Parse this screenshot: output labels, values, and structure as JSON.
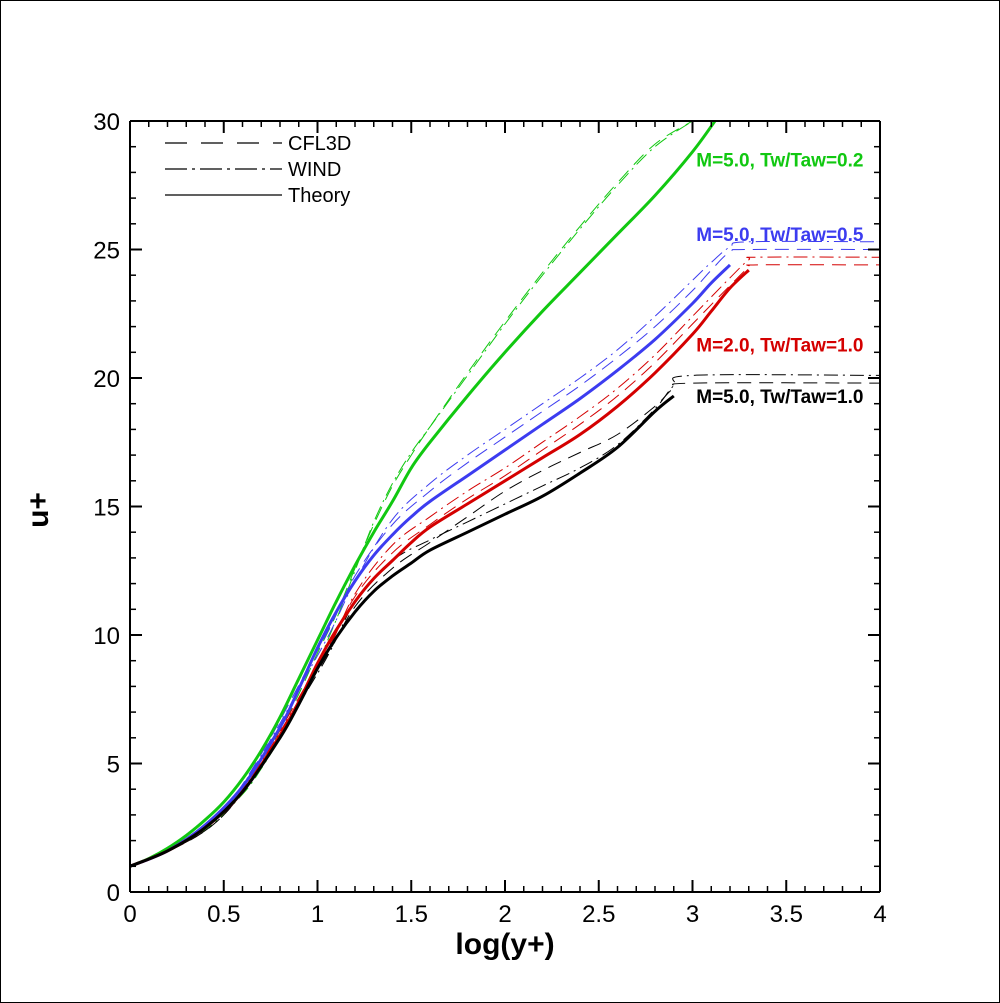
{
  "chart_data": {
    "type": "line",
    "title": "",
    "xlabel": "log(y+)",
    "ylabel": "u+",
    "xlim": [
      0,
      4
    ],
    "ylim": [
      0,
      30
    ],
    "xticks": [
      "0",
      "0.5",
      "1",
      "1.5",
      "2",
      "2.5",
      "3",
      "3.5",
      "4"
    ],
    "yticks": [
      "0",
      "5",
      "10",
      "15",
      "20",
      "25",
      "30"
    ],
    "grid": false,
    "legend": {
      "placement": "top-left",
      "entries": [
        {
          "label": "CFL3D",
          "style": "dashed"
        },
        {
          "label": "WIND",
          "style": "dashdot"
        },
        {
          "label": "Theory",
          "style": "solid"
        }
      ]
    },
    "annotations": [
      {
        "text": "M=5.0, Tw/Taw=0.2",
        "color": "#11c811",
        "x": 3.02,
        "y": 28.5
      },
      {
        "text": "M=5.0, Tw/Taw=0.5",
        "color": "#3c3cf0",
        "x": 3.02,
        "y": 25.6
      },
      {
        "text": "M=2.0, Tw/Taw=1.0",
        "color": "#d40000",
        "x": 3.02,
        "y": 21.3
      },
      {
        "text": "M=5.0, Tw/Taw=1.0",
        "color": "#000000",
        "x": 3.02,
        "y": 19.3
      }
    ],
    "series": [
      {
        "case": "M=5.0, Tw/Taw=0.2",
        "color": "#11c811",
        "style": "solid",
        "width": 3,
        "x": [
          0,
          0.1,
          0.2,
          0.3,
          0.4,
          0.5,
          0.6,
          0.7,
          0.8,
          0.9,
          1.0,
          1.1,
          1.2,
          1.3,
          1.4,
          1.5,
          1.6,
          1.8,
          2.0,
          2.2,
          2.4,
          2.6,
          2.8,
          3.0,
          3.12
        ],
        "y": [
          1.0,
          1.3,
          1.7,
          2.2,
          2.8,
          3.5,
          4.4,
          5.5,
          6.8,
          8.3,
          9.8,
          11.3,
          12.7,
          14.0,
          15.2,
          16.5,
          17.5,
          19.3,
          21.0,
          22.6,
          24.1,
          25.6,
          27.1,
          28.8,
          30.0
        ]
      },
      {
        "case": "M=5.0, Tw/Taw=0.2",
        "color": "#11c811",
        "style": "dashed",
        "width": 1,
        "x": [
          0,
          0.2,
          0.4,
          0.6,
          0.7,
          0.8,
          0.9,
          1.0,
          1.1,
          1.2,
          1.3,
          1.4,
          1.5,
          1.6,
          1.8,
          2.0,
          2.2,
          2.4,
          2.6,
          2.8,
          3.0
        ],
        "y": [
          1.0,
          1.6,
          2.5,
          4.0,
          5.0,
          6.3,
          7.7,
          9.3,
          10.8,
          12.6,
          14.3,
          15.8,
          17.0,
          18.1,
          20.2,
          22.2,
          24.1,
          25.9,
          27.6,
          29.1,
          30.0
        ]
      },
      {
        "case": "M=5.0, Tw/Taw=0.2",
        "color": "#11c811",
        "style": "dashdot",
        "width": 1,
        "x": [
          0,
          0.2,
          0.4,
          0.6,
          0.7,
          0.8,
          0.9,
          1.0,
          1.1,
          1.2,
          1.3,
          1.4,
          1.5,
          1.6,
          1.8,
          2.0,
          2.2,
          2.4,
          2.6,
          2.8,
          3.0
        ],
        "y": [
          1.0,
          1.6,
          2.4,
          3.8,
          4.8,
          6.0,
          7.4,
          8.9,
          10.6,
          12.5,
          14.4,
          15.9,
          17.1,
          18.1,
          20.1,
          22.1,
          24.0,
          25.8,
          27.5,
          29.0,
          30.0
        ]
      },
      {
        "case": "M=5.0, Tw/Taw=0.5",
        "color": "#3c3cf0",
        "style": "solid",
        "width": 3,
        "x": [
          0,
          0.2,
          0.4,
          0.6,
          0.8,
          0.9,
          1.0,
          1.1,
          1.2,
          1.3,
          1.4,
          1.5,
          1.6,
          1.8,
          2.0,
          2.2,
          2.4,
          2.6,
          2.8,
          3.0,
          3.1,
          3.2
        ],
        "y": [
          1.0,
          1.6,
          2.6,
          4.1,
          6.4,
          7.9,
          9.5,
          10.9,
          12.1,
          13.1,
          13.9,
          14.6,
          15.2,
          16.2,
          17.2,
          18.2,
          19.2,
          20.3,
          21.5,
          22.9,
          23.7,
          24.4
        ]
      },
      {
        "case": "M=5.0, Tw/Taw=0.5",
        "color": "#3c3cf0",
        "style": "dashed",
        "width": 1,
        "x": [
          0,
          0.5,
          1.0,
          1.2,
          1.4,
          1.6,
          1.8,
          2.0,
          2.2,
          2.4,
          2.6,
          2.8,
          3.0,
          3.1,
          3.2,
          3.3,
          4.0
        ],
        "y": [
          1.0,
          3.2,
          9.4,
          12.3,
          14.3,
          15.6,
          16.7,
          17.7,
          18.7,
          19.7,
          20.8,
          22.0,
          23.4,
          24.2,
          24.9,
          25.0,
          25.0
        ]
      },
      {
        "case": "M=5.0, Tw/Taw=0.5",
        "color": "#3c3cf0",
        "style": "dashdot",
        "width": 1,
        "x": [
          0,
          0.5,
          1.0,
          1.2,
          1.4,
          1.6,
          1.8,
          2.0,
          2.2,
          2.4,
          2.6,
          2.8,
          3.0,
          3.1,
          3.2,
          3.3,
          4.0
        ],
        "y": [
          1.0,
          3.2,
          9.2,
          12.1,
          14.5,
          15.9,
          17.0,
          18.0,
          19.0,
          20.0,
          21.1,
          22.4,
          23.8,
          24.5,
          25.1,
          25.3,
          25.3
        ]
      },
      {
        "case": "M=2.0, Tw/Taw=1.0",
        "color": "#d40000",
        "style": "solid",
        "width": 3,
        "x": [
          0,
          0.2,
          0.4,
          0.6,
          0.8,
          0.9,
          1.0,
          1.1,
          1.2,
          1.3,
          1.4,
          1.5,
          1.6,
          1.8,
          2.0,
          2.2,
          2.4,
          2.6,
          2.8,
          3.0,
          3.1,
          3.2,
          3.3
        ],
        "y": [
          1.0,
          1.6,
          2.5,
          3.9,
          6.1,
          7.4,
          8.9,
          10.2,
          11.3,
          12.2,
          12.9,
          13.6,
          14.2,
          15.1,
          16.0,
          16.9,
          17.8,
          18.9,
          20.2,
          21.7,
          22.6,
          23.5,
          24.2
        ]
      },
      {
        "case": "M=2.0, Tw/Taw=1.0",
        "color": "#d40000",
        "style": "dashed",
        "width": 1,
        "x": [
          0,
          0.5,
          1.0,
          1.2,
          1.4,
          1.6,
          1.8,
          2.0,
          2.2,
          2.4,
          2.6,
          2.8,
          3.0,
          3.2,
          3.3,
          3.35,
          4.0
        ],
        "y": [
          1.0,
          3.1,
          8.8,
          11.5,
          13.2,
          14.3,
          15.3,
          16.2,
          17.2,
          18.2,
          19.3,
          20.6,
          22.1,
          23.6,
          24.3,
          24.4,
          24.4
        ]
      },
      {
        "case": "M=2.0, Tw/Taw=1.0",
        "color": "#d40000",
        "style": "dashdot",
        "width": 1,
        "x": [
          0,
          0.5,
          1.0,
          1.2,
          1.4,
          1.6,
          1.8,
          2.0,
          2.2,
          2.4,
          2.6,
          2.8,
          3.0,
          3.2,
          3.3,
          3.35,
          4.0
        ],
        "y": [
          1.0,
          3.1,
          8.7,
          11.6,
          13.5,
          14.6,
          15.6,
          16.5,
          17.5,
          18.5,
          19.6,
          20.9,
          22.4,
          23.9,
          24.6,
          24.7,
          24.7
        ]
      },
      {
        "case": "M=5.0, Tw/Taw=1.0",
        "color": "#000000",
        "style": "solid",
        "width": 3,
        "x": [
          0,
          0.2,
          0.4,
          0.6,
          0.8,
          0.9,
          1.0,
          1.1,
          1.2,
          1.3,
          1.4,
          1.5,
          1.6,
          1.8,
          2.0,
          2.2,
          2.4,
          2.6,
          2.8,
          2.9
        ],
        "y": [
          1.0,
          1.6,
          2.5,
          3.9,
          6.0,
          7.3,
          8.7,
          9.9,
          10.9,
          11.7,
          12.3,
          12.8,
          13.3,
          14.0,
          14.7,
          15.4,
          16.3,
          17.3,
          18.7,
          19.3
        ]
      },
      {
        "case": "M=5.0, Tw/Taw=1.0",
        "color": "#000000",
        "style": "dashed",
        "width": 1,
        "x": [
          0,
          0.5,
          1.0,
          1.2,
          1.4,
          1.6,
          1.8,
          2.0,
          2.2,
          2.4,
          2.6,
          2.8,
          2.9,
          3.0,
          4.0
        ],
        "y": [
          1.0,
          3.0,
          8.6,
          11.1,
          12.6,
          13.6,
          14.6,
          15.6,
          16.4,
          17.1,
          17.8,
          18.9,
          19.6,
          19.8,
          19.8
        ]
      },
      {
        "case": "M=5.0, Tw/Taw=1.0",
        "color": "#000000",
        "style": "dashdot",
        "width": 1,
        "x": [
          0,
          0.5,
          1.0,
          1.2,
          1.4,
          1.6,
          1.8,
          2.0,
          2.2,
          2.4,
          2.6,
          2.8,
          2.9,
          3.0,
          4.0
        ],
        "y": [
          1.0,
          3.0,
          8.5,
          11.3,
          12.9,
          13.7,
          14.4,
          15.1,
          15.8,
          16.5,
          17.4,
          18.8,
          19.7,
          20.1,
          20.1
        ]
      }
    ]
  }
}
